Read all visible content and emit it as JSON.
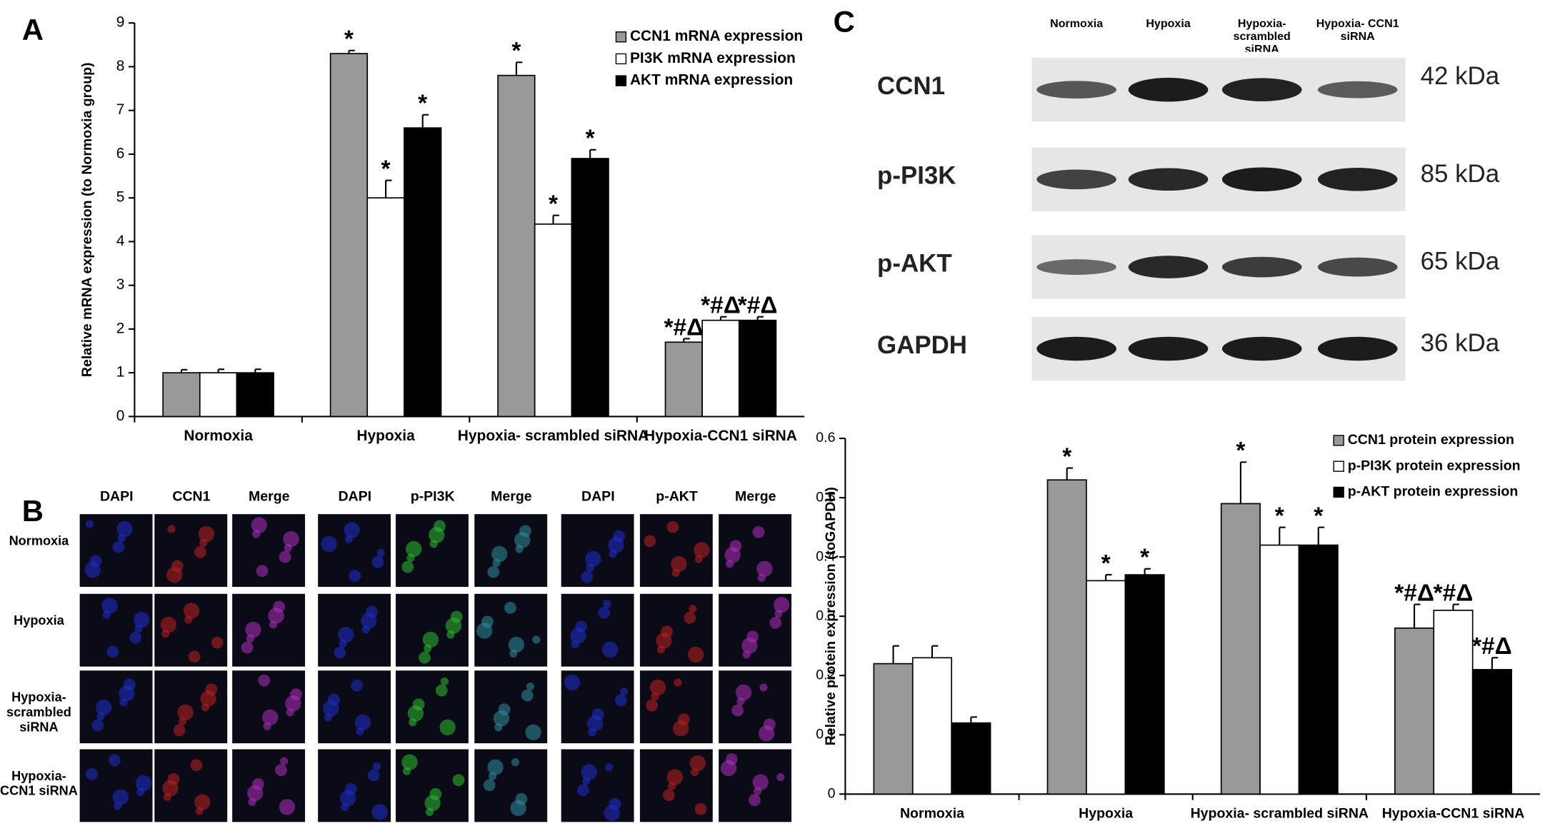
{
  "panel_labels": [
    "A",
    "B",
    "C"
  ],
  "chart_data": [
    {
      "type": "bar",
      "ylabel": "Relative mRNA expression (to Normoxia group)",
      "categories": [
        "Normoxia",
        "Hypoxia",
        "Hypoxia- scrambled siRNA",
        "Hypoxia-CCN1 siRNA"
      ],
      "series": [
        {
          "name": "CCN1 mRNA expression",
          "color": "#999999",
          "values": [
            1,
            8.3,
            7.8,
            1.7
          ],
          "errors": [
            0.07,
            0.07,
            0.3,
            0.08
          ],
          "labels": [
            null,
            "*",
            "*",
            "*#Δ"
          ]
        },
        {
          "name": "PI3K mRNA expression",
          "color": "#ffffff",
          "values": [
            1,
            5.0,
            4.4,
            2.2
          ],
          "errors": [
            0.08,
            0.4,
            0.2,
            0.08
          ],
          "labels": [
            null,
            "*",
            "*",
            "*#Δ"
          ]
        },
        {
          "name": "AKT mRNA expression",
          "color": "#000000",
          "values": [
            1,
            6.6,
            5.9,
            2.2
          ],
          "errors": [
            0.08,
            0.3,
            0.2,
            0.08
          ],
          "labels": [
            null,
            "*",
            "*",
            "*#Δ"
          ]
        }
      ],
      "ylim": [
        0,
        9
      ],
      "yticks": [
        0,
        1,
        2,
        3,
        4,
        5,
        6,
        7,
        8,
        9
      ],
      "legend": "top-right"
    },
    {
      "type": "bar",
      "ylabel": "Relative protein expression (toGAPDH)",
      "categories": [
        "Normoxia",
        "Hypoxia",
        "Hypoxia- scrambled siRNA",
        "Hypoxia-CCN1 siRNA"
      ],
      "series": [
        {
          "name": "CCN1 protein expression",
          "color": "#999999",
          "values": [
            0.22,
            0.53,
            0.49,
            0.28
          ],
          "errors": [
            0.03,
            0.02,
            0.07,
            0.04
          ],
          "labels": [
            null,
            "*",
            "*",
            "*#Δ"
          ]
        },
        {
          "name": "p-PI3K protein expression",
          "color": "#ffffff",
          "values": [
            0.23,
            0.36,
            0.42,
            0.31
          ],
          "errors": [
            0.02,
            0.01,
            0.03,
            0.01
          ],
          "labels": [
            null,
            "*",
            "*",
            "*#Δ"
          ]
        },
        {
          "name": "p-AKT protein expression",
          "color": "#000000",
          "values": [
            0.12,
            0.37,
            0.42,
            0.21
          ],
          "errors": [
            0.01,
            0.01,
            0.03,
            0.02
          ],
          "labels": [
            null,
            "*",
            "*",
            "*#Δ"
          ]
        }
      ],
      "ylim": [
        0,
        0.6
      ],
      "yticks": [
        0.0,
        0.1,
        0.2,
        0.3,
        0.4,
        0.5,
        0.6
      ],
      "legend": "top-right"
    }
  ],
  "immunofluorescence": {
    "columns": [
      "DAPI",
      "CCN1",
      "Merge",
      "DAPI",
      "p-PI3K",
      "Merge",
      "DAPI",
      "p-AKT",
      "Merge"
    ],
    "rows": [
      "Normoxia",
      "Hypoxia",
      "Hypoxia-scrambled siRNA",
      "Hypoxia-CCN1 siRNA"
    ]
  },
  "western_blot": {
    "lanes": [
      "Normoxia",
      "Hypoxia",
      "Hypoxia- scrambled siRNA",
      "Hypoxia- CCN1 siRNA"
    ],
    "rows": [
      {
        "protein": "CCN1",
        "size": "42 kDa"
      },
      {
        "protein": "p-PI3K",
        "size": "85 kDa"
      },
      {
        "protein": "p-AKT",
        "size": "65 kDa"
      },
      {
        "protein": "GAPDH",
        "size": "36 kDa"
      }
    ]
  }
}
